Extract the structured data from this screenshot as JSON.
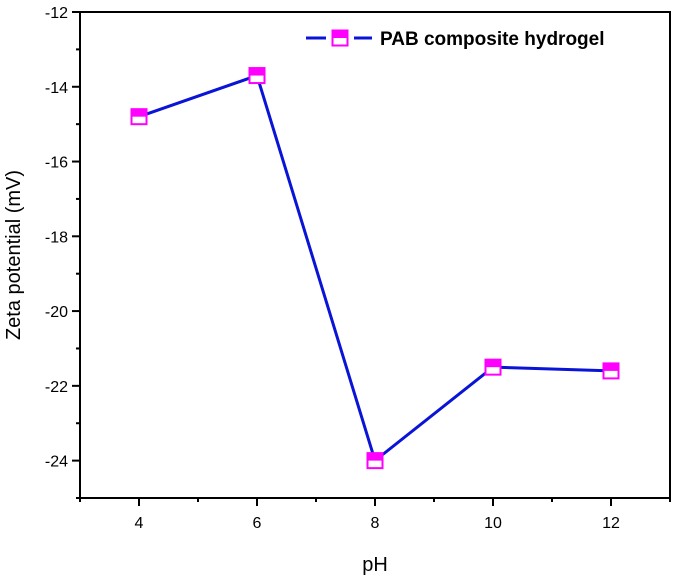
{
  "chart_data": {
    "type": "line",
    "title": "",
    "xlabel": "pH",
    "ylabel": "Zeta potential (mV)",
    "xlim": [
      3,
      13
    ],
    "ylim": [
      -25,
      -12
    ],
    "x_ticks": [
      "4",
      "6",
      "8",
      "10",
      "12"
    ],
    "y_ticks": [
      "-12",
      "-14",
      "-16",
      "-18",
      "-20",
      "-22",
      "-24"
    ],
    "grid": false,
    "legend_position": "top-right",
    "series": [
      {
        "name": "PAB composite hydrogel",
        "line_color": "#0a14d6",
        "marker_color": "#ff00ff",
        "marker": "half-filled-square",
        "points": [
          {
            "x": 4,
            "y": -14.8
          },
          {
            "x": 6,
            "y": -13.7
          },
          {
            "x": 8,
            "y": -24.0
          },
          {
            "x": 10,
            "y": -21.5
          },
          {
            "x": 12,
            "y": -21.6
          }
        ]
      }
    ]
  }
}
